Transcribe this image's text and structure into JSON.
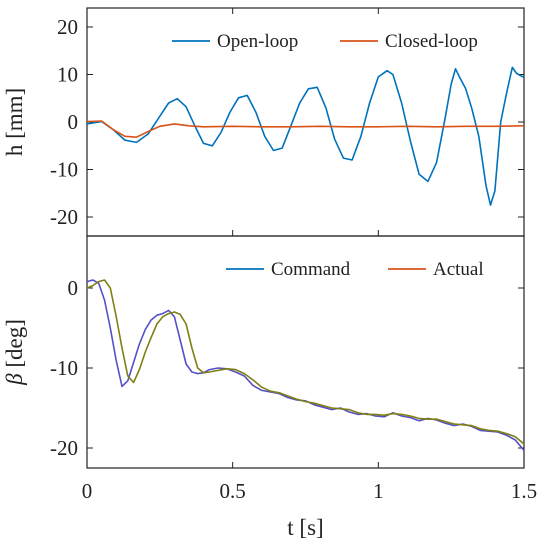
{
  "chart_data": [
    {
      "type": "line",
      "panel": "top",
      "ylabel": "h [mm]",
      "xlim": [
        0,
        1.5
      ],
      "ylim": [
        -24,
        24
      ],
      "yticks": [
        20,
        10,
        0,
        -10,
        -20
      ],
      "grid": false,
      "legend_position": "top-right",
      "legend_layout": "horizontal",
      "series": [
        {
          "name": "Open-loop",
          "color": "#0072BD",
          "x": [
            0,
            0.05,
            0.09,
            0.13,
            0.17,
            0.21,
            0.25,
            0.28,
            0.31,
            0.34,
            0.37,
            0.4,
            0.43,
            0.46,
            0.49,
            0.52,
            0.55,
            0.58,
            0.61,
            0.64,
            0.67,
            0.7,
            0.73,
            0.76,
            0.79,
            0.82,
            0.85,
            0.88,
            0.91,
            0.94,
            0.97,
            1.0,
            1.03,
            1.05,
            1.08,
            1.11,
            1.14,
            1.17,
            1.2,
            1.23,
            1.25,
            1.265,
            1.28,
            1.3,
            1.32,
            1.345,
            1.37,
            1.385,
            1.4,
            1.42,
            1.44,
            1.46,
            1.475,
            1.49,
            1.5
          ],
          "y": [
            -0.4,
            0.1,
            -1.6,
            -3.8,
            -4.3,
            -2.5,
            1.2,
            4.0,
            4.9,
            3.2,
            -0.8,
            -4.5,
            -5.0,
            -2.2,
            2.0,
            5.1,
            5.6,
            2.0,
            -3.0,
            -6.0,
            -5.5,
            -0.8,
            4.0,
            7.0,
            7.3,
            3.0,
            -3.6,
            -7.6,
            -8.0,
            -3.0,
            4.0,
            9.5,
            10.8,
            10.0,
            4.0,
            -4.0,
            -11.0,
            -12.5,
            -8.5,
            1.0,
            8.0,
            11.2,
            9.3,
            7.0,
            3.0,
            -3.0,
            -13.5,
            -17.5,
            -14.5,
            0.0,
            6.0,
            11.5,
            10.2,
            9.7,
            9.4
          ]
        },
        {
          "name": "Closed-loop",
          "color": "#D95319",
          "x": [
            0,
            0.05,
            0.09,
            0.13,
            0.17,
            0.21,
            0.25,
            0.3,
            0.35,
            0.4,
            0.5,
            0.6,
            0.7,
            0.8,
            0.9,
            1.0,
            1.1,
            1.2,
            1.3,
            1.4,
            1.5
          ],
          "y": [
            0.1,
            0.2,
            -1.6,
            -3.0,
            -3.2,
            -2.0,
            -0.9,
            -0.4,
            -0.8,
            -1.0,
            -0.9,
            -1.0,
            -1.0,
            -0.9,
            -1.0,
            -1.0,
            -0.9,
            -1.0,
            -0.9,
            -0.9,
            -0.8
          ]
        }
      ]
    },
    {
      "type": "line",
      "panel": "bottom",
      "xlabel": "t [s]",
      "ylabel": "β [deg]",
      "xlim": [
        0,
        1.5
      ],
      "ylim": [
        -22.5,
        6.5
      ],
      "xticks": [
        0,
        0.5,
        1,
        1.5
      ],
      "xtick_labels": [
        "0",
        "0.5",
        "1",
        "1.5"
      ],
      "yticks": [
        0,
        -10,
        -20
      ],
      "grid": false,
      "legend_position": "top-right",
      "legend_layout": "horizontal",
      "legend": [
        {
          "name": "Command",
          "color": "#0072BD"
        },
        {
          "name": "Actual",
          "color": "#D95319"
        }
      ],
      "series": [
        {
          "name": "",
          "color": "#5451C6",
          "x": [
            0,
            0.02,
            0.04,
            0.06,
            0.08,
            0.1,
            0.12,
            0.14,
            0.16,
            0.18,
            0.2,
            0.22,
            0.24,
            0.26,
            0.28,
            0.3,
            0.32,
            0.34,
            0.36,
            0.38,
            0.4,
            0.42,
            0.45,
            0.48,
            0.51,
            0.54,
            0.57,
            0.6,
            0.63,
            0.66,
            0.69,
            0.72,
            0.75,
            0.78,
            0.81,
            0.84,
            0.87,
            0.9,
            0.93,
            0.96,
            0.99,
            1.02,
            1.05,
            1.08,
            1.11,
            1.14,
            1.17,
            1.2,
            1.23,
            1.26,
            1.29,
            1.32,
            1.35,
            1.38,
            1.41,
            1.44,
            1.47,
            1.5
          ],
          "y": [
            0.8,
            1.0,
            0.6,
            -1.5,
            -5.0,
            -9.0,
            -12.3,
            -11.6,
            -9.3,
            -7.0,
            -5.2,
            -4.0,
            -3.4,
            -3.2,
            -2.8,
            -3.6,
            -6.5,
            -9.5,
            -10.5,
            -10.7,
            -10.6,
            -10.2,
            -10.0,
            -10.1,
            -10.5,
            -11.0,
            -12.2,
            -12.8,
            -13.0,
            -13.2,
            -13.7,
            -14.0,
            -14.1,
            -14.6,
            -14.9,
            -15.2,
            -15.0,
            -15.5,
            -15.8,
            -15.7,
            -16.0,
            -16.1,
            -15.6,
            -16.0,
            -16.2,
            -16.6,
            -16.3,
            -16.5,
            -16.9,
            -17.2,
            -17.0,
            -17.3,
            -17.8,
            -17.9,
            -18.0,
            -18.4,
            -19.0,
            -20.3
          ]
        },
        {
          "name": "",
          "color": "#7F7F14",
          "x": [
            0,
            0.02,
            0.04,
            0.06,
            0.08,
            0.1,
            0.12,
            0.14,
            0.16,
            0.18,
            0.2,
            0.22,
            0.24,
            0.26,
            0.28,
            0.3,
            0.32,
            0.34,
            0.36,
            0.38,
            0.4,
            0.42,
            0.45,
            0.48,
            0.51,
            0.54,
            0.57,
            0.6,
            0.63,
            0.66,
            0.69,
            0.72,
            0.75,
            0.78,
            0.81,
            0.84,
            0.87,
            0.9,
            0.93,
            0.96,
            0.99,
            1.02,
            1.05,
            1.08,
            1.11,
            1.14,
            1.17,
            1.2,
            1.23,
            1.26,
            1.29,
            1.32,
            1.35,
            1.38,
            1.41,
            1.44,
            1.47,
            1.5
          ],
          "y": [
            0.0,
            0.3,
            0.8,
            1.0,
            0.0,
            -3.5,
            -7.5,
            -11.0,
            -11.8,
            -10.2,
            -8.0,
            -6.2,
            -4.5,
            -3.6,
            -3.2,
            -3.0,
            -3.3,
            -4.5,
            -7.5,
            -10.0,
            -10.6,
            -10.5,
            -10.3,
            -10.1,
            -10.2,
            -10.7,
            -11.5,
            -12.4,
            -12.9,
            -13.1,
            -13.5,
            -13.9,
            -14.2,
            -14.4,
            -14.7,
            -15.0,
            -15.1,
            -15.2,
            -15.6,
            -15.8,
            -15.8,
            -15.9,
            -15.7,
            -15.8,
            -16.0,
            -16.3,
            -16.4,
            -16.4,
            -16.7,
            -17.0,
            -17.1,
            -17.2,
            -17.6,
            -17.8,
            -17.9,
            -18.2,
            -18.6,
            -19.5
          ]
        }
      ]
    }
  ]
}
